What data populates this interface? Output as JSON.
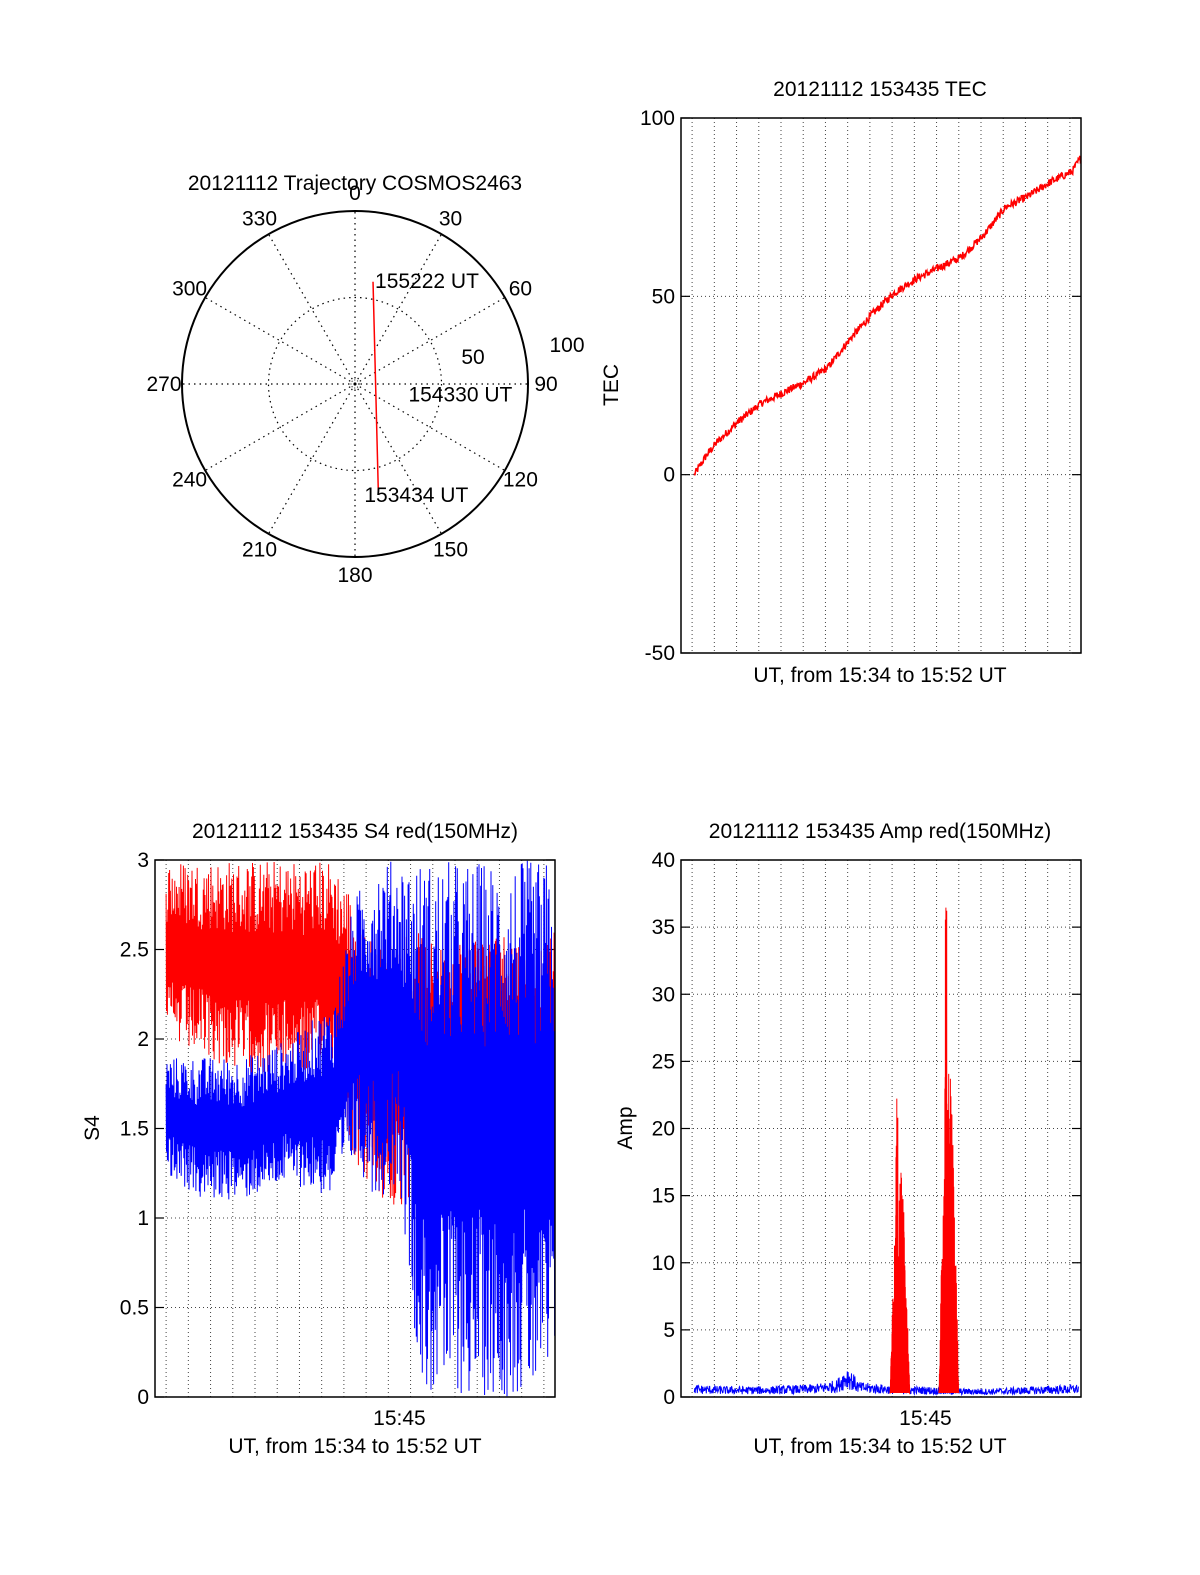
{
  "chart_data": [
    {
      "id": "trajectory",
      "type": "polar",
      "title": "20121112 Trajectory COSMOS2463",
      "angle_ticks": [
        0,
        30,
        60,
        90,
        120,
        150,
        180,
        210,
        240,
        270,
        300,
        330
      ],
      "angle_labels": [
        "0",
        "30",
        "60",
        "90",
        "120",
        "150",
        "180",
        "210",
        "240",
        "270",
        "300",
        "330"
      ],
      "radial_labels": [
        "50",
        "100"
      ],
      "radial_max": 100,
      "series": [
        {
          "color": "#ff0000",
          "points": [
            {
              "az": 10,
              "r": 60
            },
            {
              "az": 40,
              "r": 8
            },
            {
              "az": 168,
              "r": 65
            }
          ]
        }
      ],
      "annotations": [
        {
          "text": "155222 UT",
          "az": 10,
          "r": 60
        },
        {
          "text": "154330 UT",
          "az": 100,
          "r": 12
        },
        {
          "text": "153434 UT",
          "az": 168,
          "r": 65
        }
      ]
    },
    {
      "id": "tec",
      "type": "line",
      "title": "20121112 153435 TEC",
      "xlabel": "UT, from 15:34 to 15:52 UT",
      "ylabel": "TEC",
      "ylim": [
        -50,
        100
      ],
      "yticks": [
        -50,
        0,
        50,
        100
      ],
      "xlim": [
        0,
        18.0
      ],
      "grid": true,
      "series": [
        {
          "color": "#ff0000",
          "x": [
            0,
            0.5,
            1,
            1.5,
            2,
            3,
            4,
            5,
            6,
            7,
            8,
            9,
            10,
            11,
            12,
            13,
            14,
            15,
            16,
            17,
            18
          ],
          "y": [
            0,
            5,
            9,
            12,
            15,
            20,
            23,
            26,
            30,
            38,
            45,
            51,
            55,
            58,
            61,
            67,
            75,
            78,
            82,
            85,
            95
          ]
        }
      ]
    },
    {
      "id": "s4",
      "type": "line",
      "title": "20121112 153435 S4 red(150MHz)",
      "xlabel": "UT, from 15:34 to 15:52 UT",
      "ylabel": "S4",
      "ylim": [
        0,
        3
      ],
      "yticks": [
        0,
        0.5,
        1,
        1.5,
        2,
        2.5,
        3
      ],
      "ytick_labels": [
        "0",
        "0.5",
        "1",
        "1.5",
        "2",
        "2.5",
        "3"
      ],
      "xlim": [
        0,
        18.0
      ],
      "xticks": [
        {
          "x": 11,
          "label": "15:45"
        }
      ],
      "grid": true,
      "series": [
        {
          "color": "#ff0000",
          "style": "noisy",
          "x": [
            0,
            2,
            4,
            6,
            8,
            9,
            10,
            11,
            12,
            13,
            14,
            15,
            16,
            17,
            18
          ],
          "upper": [
            3,
            3,
            3,
            3,
            3,
            2.8,
            2.5,
            2.6,
            2.6,
            2.5,
            2.6,
            2.6,
            2.6,
            2.5,
            2.6
          ],
          "lower": [
            2.0,
            1.9,
            1.8,
            1.8,
            1.8,
            1.3,
            1.1,
            1.0,
            1.2,
            1.4,
            1.4,
            1.5,
            1.5,
            1.5,
            1.5
          ]
        },
        {
          "color": "#0000ff",
          "style": "noisy",
          "x": [
            0,
            2,
            4,
            6,
            8,
            9,
            10,
            11,
            12,
            13,
            14,
            15,
            16,
            17,
            18
          ],
          "upper": [
            1.9,
            1.9,
            1.9,
            2.0,
            2.2,
            2.8,
            3.0,
            3.0,
            3.0,
            3.0,
            3.0,
            3.0,
            3.0,
            3.0,
            3.0
          ],
          "lower": [
            1.3,
            1.1,
            1.1,
            1.2,
            1.1,
            1.3,
            1.1,
            1.2,
            0.0,
            0.0,
            0.0,
            0.0,
            0.0,
            0.0,
            0.0
          ]
        }
      ]
    },
    {
      "id": "amp",
      "type": "line",
      "title": "20121112 153435 Amp red(150MHz)",
      "xlabel": "UT, from 15:34 to 15:52 UT",
      "ylabel": "Amp",
      "ylim": [
        0,
        40
      ],
      "yticks": [
        0,
        5,
        10,
        15,
        20,
        25,
        30,
        35,
        40
      ],
      "xlim": [
        0,
        18.0
      ],
      "xticks": [
        {
          "x": 11,
          "label": "15:45"
        }
      ],
      "grid": true,
      "series": [
        {
          "color": "#0000ff",
          "style": "baseline",
          "x": [
            0,
            2,
            4,
            6,
            7,
            7.5,
            8,
            9,
            10,
            11,
            12,
            14,
            16,
            18
          ],
          "y": [
            0.6,
            0.5,
            0.5,
            0.6,
            0.8,
            1.5,
            0.7,
            0.6,
            0.5,
            0.5,
            0.4,
            0.4,
            0.5,
            0.6
          ]
        },
        {
          "color": "#ff0000",
          "style": "bursts",
          "bursts": [
            {
              "x0": 9.4,
              "x1": 10.3,
              "peak": 24,
              "plateau": 17
            },
            {
              "x0": 11.6,
              "x1": 12.5,
              "peak": 37,
              "plateau": 25
            }
          ]
        }
      ]
    }
  ]
}
